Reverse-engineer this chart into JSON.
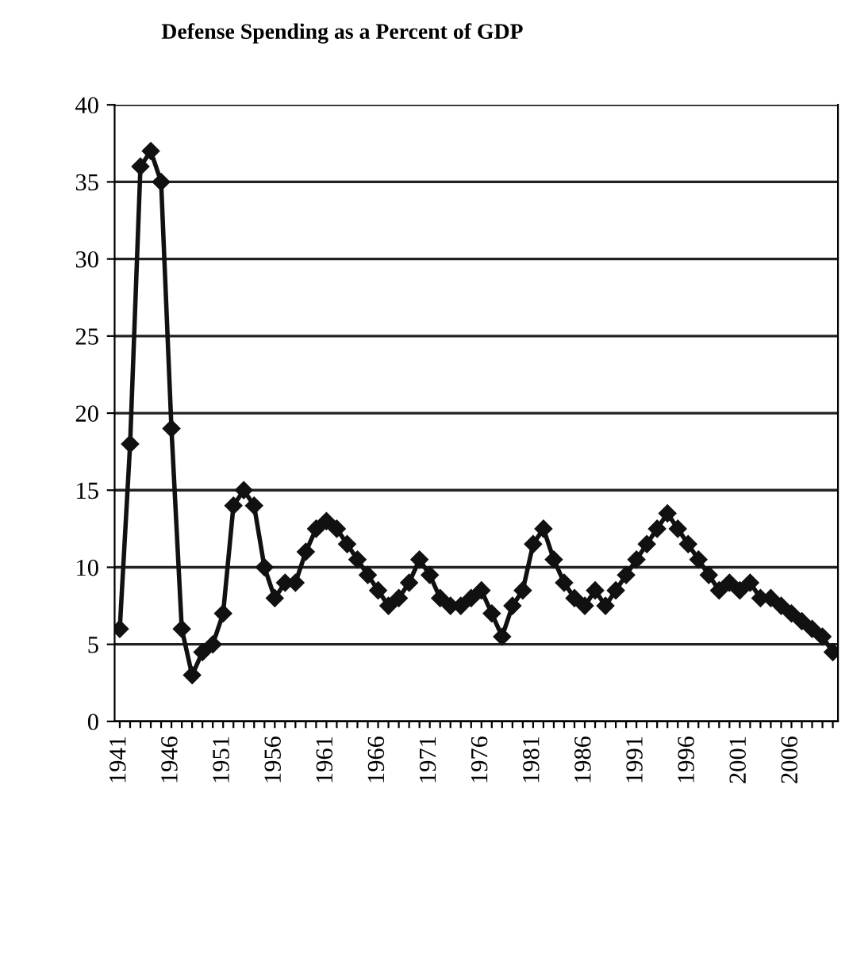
{
  "chart_data": {
    "type": "line",
    "title": "Defense Spending as a Percent of GDP",
    "categories": [
      "1941",
      null,
      null,
      null,
      null,
      "1946",
      null,
      null,
      null,
      null,
      "1951",
      null,
      null,
      null,
      null,
      "1956",
      null,
      null,
      null,
      null,
      "1961",
      null,
      null,
      null,
      null,
      "1966",
      null,
      null,
      null,
      null,
      "1971",
      null,
      null,
      null,
      null,
      "1976",
      null,
      null,
      null,
      null,
      "1981",
      null,
      null,
      null,
      null,
      "1986",
      null,
      null,
      null,
      null,
      "1991",
      null,
      null,
      null,
      null,
      "1996",
      null,
      null,
      null,
      null,
      "2001",
      null,
      null,
      null,
      null,
      "2006",
      null,
      null,
      null,
      null
    ],
    "series": [
      {
        "color": "#111111",
        "values": [
          6,
          18,
          36,
          37,
          35,
          19,
          6,
          3,
          4.5,
          5,
          7,
          14,
          15,
          14,
          10,
          8,
          9,
          9,
          11,
          12.5,
          13,
          12.5,
          11.5,
          10.5,
          9.5,
          8.5,
          7.5,
          8,
          9,
          10.5,
          9.5,
          8,
          7.5,
          7.5,
          8,
          8.5,
          7,
          5.5,
          7.5,
          8.5,
          11.5,
          12.5,
          10.5,
          9,
          8,
          7.5,
          8.5,
          7.5,
          8.5,
          9.5,
          10.5,
          11.5,
          12.5,
          13.5,
          12.5,
          11.5,
          10.5,
          9.5,
          8.5,
          9,
          8.5,
          9,
          8,
          8,
          7.5,
          7,
          6.5,
          6,
          5.5,
          4.5
        ]
      }
    ],
    "ylim": [
      0,
      40
    ],
    "yticks": [
      0,
      5,
      10,
      15,
      20,
      25,
      30,
      35,
      40
    ],
    "grid": "y",
    "marker": "diamond",
    "line_style": "solid",
    "legend": false
  }
}
